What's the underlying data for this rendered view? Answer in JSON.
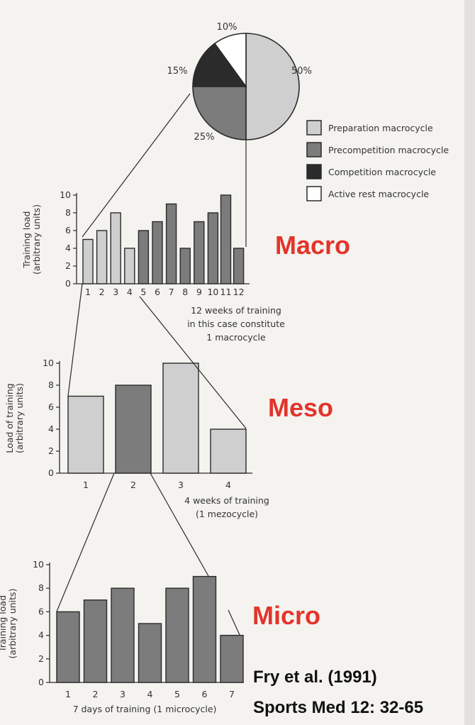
{
  "colors": {
    "preparation": "#cfcfcf",
    "precompetition": "#7c7c7c",
    "competition": "#2b2b2b",
    "active_rest": "#ffffff",
    "accent_red": "#e3342b"
  },
  "pie": {
    "slices": [
      {
        "label": "50%",
        "value": 50,
        "type": "preparation"
      },
      {
        "label": "25%",
        "value": 25,
        "type": "precompetition"
      },
      {
        "label": "15%",
        "value": 15,
        "type": "competition"
      },
      {
        "label": "10%",
        "value": 10,
        "type": "active_rest"
      }
    ]
  },
  "legend": [
    {
      "label": "Preparation macrocycle",
      "type": "preparation"
    },
    {
      "label": "Precompetition macrocycle",
      "type": "precompetition"
    },
    {
      "label": "Competition macrocycle",
      "type": "competition"
    },
    {
      "label": "Active rest macrocycle",
      "type": "active_rest"
    }
  ],
  "labels": {
    "macro": "Macro",
    "meso": "Meso",
    "micro": "Micro",
    "citation_line1": "Fry  et al. (1991)",
    "citation_line2": "Sports Med 12: 32-65"
  },
  "chart_data": [
    {
      "type": "pie",
      "categories": [
        "Preparation macrocycle",
        "Precompetition macrocycle",
        "Competition macrocycle",
        "Active rest macrocycle"
      ],
      "values": [
        50,
        25,
        15,
        10
      ]
    },
    {
      "type": "bar",
      "categories": [
        "1",
        "2",
        "3",
        "4",
        "5",
        "6",
        "7",
        "8",
        "9",
        "10",
        "11",
        "12"
      ],
      "values": [
        5,
        6,
        8,
        4,
        6,
        7,
        9,
        4,
        7,
        8,
        10,
        4
      ],
      "bar_types": [
        "preparation",
        "preparation",
        "preparation",
        "preparation",
        "precompetition",
        "precompetition",
        "precompetition",
        "precompetition",
        "precompetition",
        "precompetition",
        "precompetition",
        "precompetition"
      ],
      "yticks": [
        "0",
        "2",
        "4",
        "6",
        "8",
        "10"
      ],
      "ylim": [
        0,
        10
      ],
      "ylabel": "Training load",
      "ylabel2": "(arbitrary units)",
      "caption": [
        "12 weeks of training",
        "in this case constitute",
        "1 macrocycle"
      ]
    },
    {
      "type": "bar",
      "categories": [
        "1",
        "2",
        "3",
        "4"
      ],
      "values": [
        7,
        8,
        10,
        4
      ],
      "bar_types": [
        "preparation",
        "precompetition",
        "preparation",
        "preparation"
      ],
      "yticks": [
        "0",
        "2",
        "4",
        "6",
        "8",
        "10"
      ],
      "ylim": [
        0,
        10
      ],
      "ylabel": "Load of training",
      "ylabel2": "(arbitrary units)",
      "caption": [
        "4 weeks of training",
        "(1 mezocycle)"
      ]
    },
    {
      "type": "bar",
      "categories": [
        "1",
        "2",
        "3",
        "4",
        "5",
        "6",
        "7"
      ],
      "values": [
        6,
        7,
        8,
        5,
        8,
        9,
        4
      ],
      "bar_types": [
        "precompetition",
        "precompetition",
        "precompetition",
        "precompetition",
        "precompetition",
        "precompetition",
        "precompetition"
      ],
      "yticks": [
        "0",
        "2",
        "4",
        "6",
        "8",
        "10"
      ],
      "ylim": [
        0,
        10
      ],
      "ylabel": "Training load",
      "ylabel2": "(arbitrary units)",
      "caption": [
        "7 days of training (1 microcycle)"
      ]
    }
  ]
}
